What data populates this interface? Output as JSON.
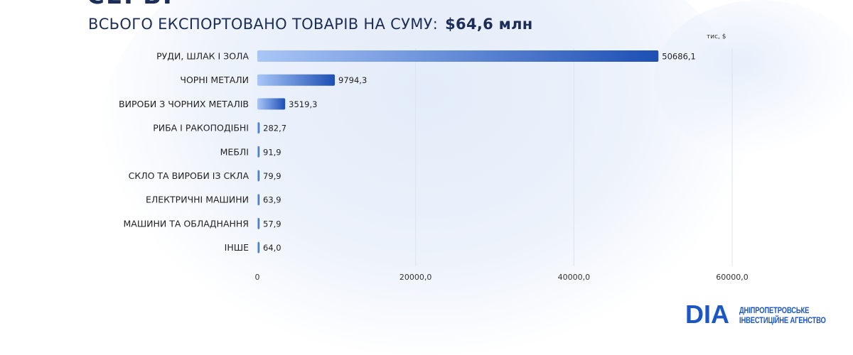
{
  "header": {
    "cut_title": "СЕРБІ",
    "subtitle_prefix": "ВСЬОГО ЕКСПОРТОВАНО ТОВАРІВ НА СУМУ:",
    "subtitle_total": "$64,6 млн"
  },
  "chart_data": {
    "type": "bar",
    "orientation": "horizontal",
    "unit_label": "тис, $",
    "categories": [
      "РУДИ, ШЛАК І ЗОЛА",
      "ЧОРНІ МЕТАЛИ",
      "ВИРОБИ З ЧОРНИХ МЕТАЛІВ",
      "РИБА І РАКОПОДІБНІ",
      "МЕБЛІ",
      "СКЛО ТА ВИРОБИ ІЗ СКЛА",
      "ЕЛЕКТРИЧНІ МАШИНИ",
      "МАШИНИ ТА ОБЛАДНАННЯ",
      "ІНШЕ"
    ],
    "values": [
      50686.1,
      9794.3,
      3519.3,
      282.7,
      91.9,
      79.9,
      63.9,
      57.9,
      64.0
    ],
    "value_labels": [
      "50686,1",
      "9794,3",
      "3519,3",
      "282,7",
      "91,9",
      "79,9",
      "63,9",
      "57,9",
      "64,0"
    ],
    "xlim": [
      0,
      60000
    ],
    "ticks": [
      0,
      20000,
      40000,
      60000
    ],
    "tick_labels": [
      "0",
      "20000,0",
      "40000,0",
      "60000,0"
    ],
    "grid": true,
    "bar_gradient": [
      "#a9c6f7",
      "#1d4fb4"
    ]
  },
  "branding": {
    "logo_letters": "DIA",
    "org_line1": "ДНІПРОПЕТРОВСЬКЕ",
    "org_line2": "ІНВЕСТИЦІЙНЕ АГЕНСТВО"
  }
}
